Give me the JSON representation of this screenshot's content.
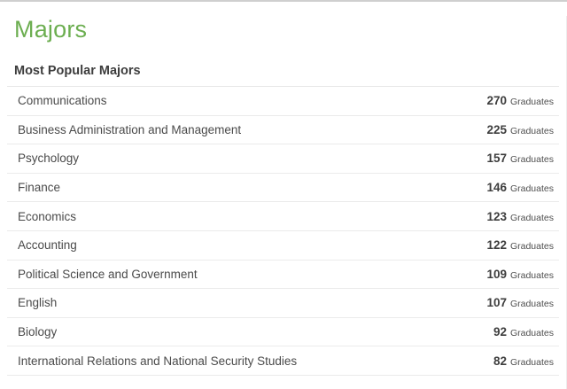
{
  "page": {
    "title": "Majors"
  },
  "section": {
    "heading": "Most Popular Majors",
    "graduates_label": "Graduates",
    "rows": [
      {
        "major": "Communications",
        "count": "270"
      },
      {
        "major": "Business Administration and Management",
        "count": "225"
      },
      {
        "major": "Psychology",
        "count": "157"
      },
      {
        "major": "Finance",
        "count": "146"
      },
      {
        "major": "Economics",
        "count": "123"
      },
      {
        "major": "Accounting",
        "count": "122"
      },
      {
        "major": "Political Science and Government",
        "count": "109"
      },
      {
        "major": "English",
        "count": "107"
      },
      {
        "major": "Biology",
        "count": "92"
      },
      {
        "major": "International Relations and National Security Studies",
        "count": "82"
      }
    ]
  },
  "colors": {
    "title_green": "#6cae50",
    "heading_text": "#3d3d3d",
    "row_text": "#4a4a4a",
    "separator": "#ebebeb",
    "top_border": "#cfcfcf"
  }
}
